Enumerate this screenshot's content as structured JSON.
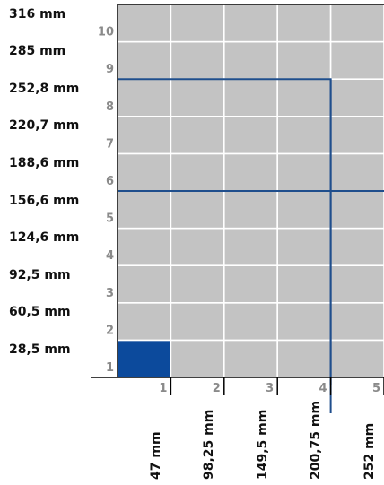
{
  "row_labels": [
    "28,5 mm",
    "60,5 mm",
    "92,5 mm",
    "124,6 mm",
    "156,6 mm",
    "188,6 mm",
    "220,7 mm",
    "252,8 mm",
    "285 mm",
    "316 mm"
  ],
  "row_numbers": [
    "1",
    "2",
    "3",
    "4",
    "5",
    "6",
    "7",
    "8",
    "9",
    "10"
  ],
  "column_labels": [
    "47 mm",
    "98,25 mm",
    "149,5 mm",
    "200,75 mm",
    "252 mm"
  ],
  "column_numbers": [
    "1",
    "2",
    "3",
    "4",
    "5"
  ],
  "selected_cell": {
    "column": 1,
    "row": 1
  },
  "guide_lines": {
    "vertical_at_column": 4,
    "horizontal_at_row": 5,
    "outer_frame": {
      "columns": 4,
      "rows": 8
    }
  },
  "colors": {
    "cell_fill": "#c3c3c3",
    "grid_line": "#ffffff",
    "selected": "#0c4a9c",
    "guide": "#1f4e8c",
    "number": "#8a8a8a",
    "frame": "#000000"
  }
}
